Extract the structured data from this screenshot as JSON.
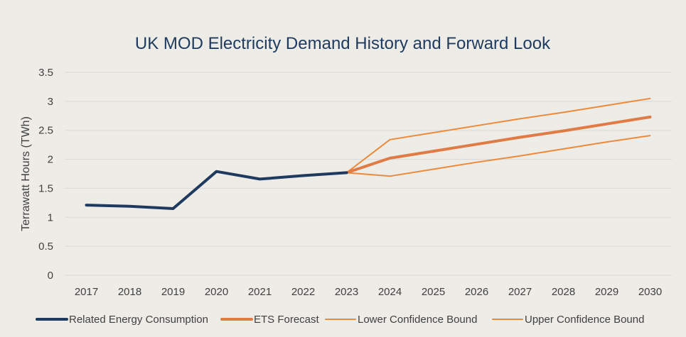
{
  "chart_data": {
    "type": "line",
    "title": "UK MOD Electricity Demand History and Forward Look",
    "xlabel": "",
    "ylabel": "Terrawatt Hours (TWh)",
    "ylim": [
      0,
      3.5
    ],
    "yticks": [
      "0",
      "0.5",
      "1",
      "1.5",
      "2",
      "2.5",
      "3",
      "3.5"
    ],
    "grid": "horizontal",
    "legend_position": "bottom",
    "categories": [
      "2017",
      "2018",
      "2019",
      "2020",
      "2021",
      "2022",
      "2023",
      "2024",
      "2025",
      "2026",
      "2027",
      "2028",
      "2029",
      "2030"
    ],
    "series": [
      {
        "name": "Related Energy Consumption",
        "color": "#1f3a5f",
        "values": [
          1.21,
          1.19,
          1.15,
          1.79,
          1.66,
          1.72,
          1.77,
          null,
          null,
          null,
          null,
          null,
          null,
          null
        ]
      },
      {
        "name": "ETS Forecast",
        "color": "#e07b45",
        "values": [
          null,
          null,
          null,
          null,
          null,
          null,
          1.77,
          2.02,
          2.14,
          2.26,
          2.38,
          2.49,
          2.61,
          2.73
        ]
      },
      {
        "name": "Lower Confidence Bound",
        "color": "#ed8a3a",
        "values": [
          null,
          null,
          null,
          null,
          null,
          null,
          1.77,
          1.71,
          1.83,
          1.95,
          2.06,
          2.18,
          2.3,
          2.41
        ]
      },
      {
        "name": "Upper Confidence Bound",
        "color": "#ed8a3a",
        "values": [
          null,
          null,
          null,
          null,
          null,
          null,
          1.77,
          2.34,
          2.46,
          2.58,
          2.7,
          2.81,
          2.93,
          3.05
        ]
      }
    ]
  }
}
